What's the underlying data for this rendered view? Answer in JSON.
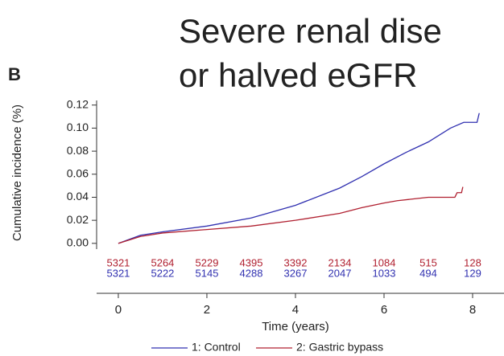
{
  "chart_data": {
    "type": "line",
    "panel_label": "B",
    "title_lines": [
      "Severe renal dise",
      "or halved eGFR"
    ],
    "x_label": "Time (years)",
    "y_label": "Cumulative incidence (%)",
    "xlim": [
      -0.49,
      8.6
    ],
    "ylim": [
      -0.005,
      0.124
    ],
    "xticks": [
      0,
      2,
      4,
      6,
      8
    ],
    "yticks": [
      {
        "value": 0,
        "label": "0.00"
      },
      {
        "value": 0.02,
        "label": "0.02"
      },
      {
        "value": 0.04,
        "label": "0.04"
      },
      {
        "value": 0.06,
        "label": "0.06"
      },
      {
        "value": 0.08,
        "label": "0.08"
      },
      {
        "value": 0.1,
        "label": "0.10"
      },
      {
        "value": 0.12,
        "label": "0.12"
      }
    ],
    "risk_times": [
      0,
      1,
      2,
      3,
      4,
      5,
      6,
      7,
      8
    ],
    "series": [
      {
        "name": "1: Control",
        "color": "#3030b0",
        "x": [
          0,
          0.5,
          1,
          2,
          3,
          4,
          5,
          5.5,
          6,
          6.5,
          7,
          7.5,
          7.8,
          8.1,
          8.15
        ],
        "values": [
          0,
          0.007,
          0.01,
          0.015,
          0.022,
          0.033,
          0.048,
          0.058,
          0.069,
          0.079,
          0.088,
          0.1,
          0.105,
          0.105,
          0.113
        ],
        "at_risk": [
          5321,
          5222,
          5145,
          4288,
          3267,
          2047,
          1033,
          494,
          129
        ]
      },
      {
        "name": "2: Gastric bypass",
        "color": "#b02030",
        "x": [
          0,
          0.5,
          1,
          2,
          3,
          4,
          5,
          5.5,
          6,
          6.3,
          7,
          7.6,
          7.65,
          7.75,
          7.78
        ],
        "values": [
          0,
          0.006,
          0.009,
          0.012,
          0.015,
          0.02,
          0.026,
          0.031,
          0.035,
          0.037,
          0.04,
          0.04,
          0.044,
          0.044,
          0.049
        ],
        "at_risk": [
          5321,
          5264,
          5229,
          4395,
          3392,
          2134,
          1084,
          515,
          128
        ]
      }
    ]
  }
}
